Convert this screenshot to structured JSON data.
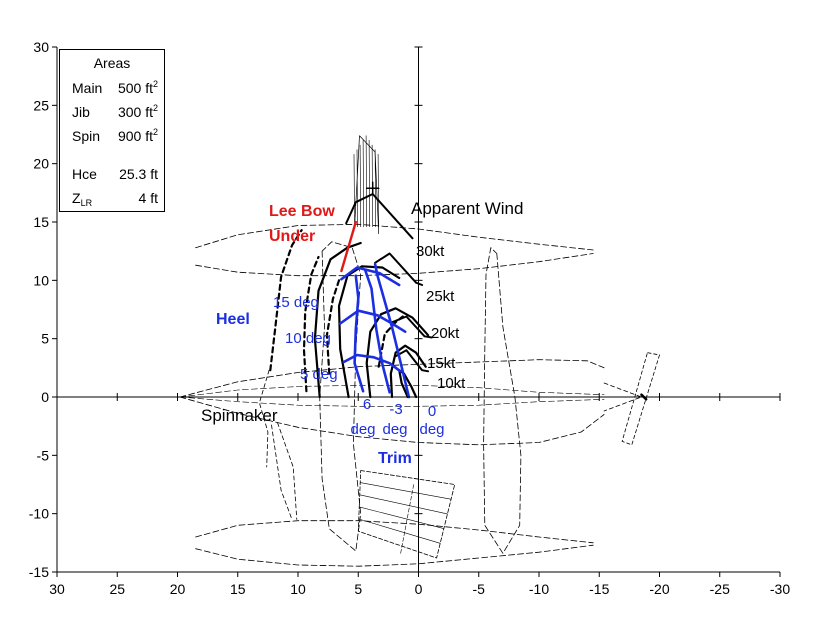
{
  "chart_data": {
    "type": "line",
    "title": "",
    "xlabel": "",
    "ylabel": "",
    "xlim": [
      30,
      -30
    ],
    "ylim": [
      -15,
      30
    ],
    "xticks": [
      "30",
      "25",
      "20",
      "15",
      "10",
      "5",
      "0",
      "-5",
      "-10",
      "-15",
      "-20",
      "-25",
      "-30"
    ],
    "yticks": [
      "30",
      "25",
      "20",
      "15",
      "10",
      "5",
      "0",
      "-5",
      "-10",
      "-15"
    ],
    "grid": false,
    "areas_box": {
      "title": "Areas",
      "rows": [
        {
          "label": "Main",
          "value": "500 ft",
          "sup": "2"
        },
        {
          "label": "Jib",
          "value": "300 ft",
          "sup": "2"
        },
        {
          "label": "Spin",
          "value": "900 ft",
          "sup": "2"
        },
        {
          "label": "Hce",
          "value": "25.3 ft",
          "sup": ""
        },
        {
          "label": "Z",
          "sub": "LR",
          "value": "4 ft",
          "sup": ""
        }
      ]
    },
    "annotations": {
      "apparent_wind": "Apparent Wind",
      "lee_bow_1": "Lee Bow",
      "lee_bow_2": "Under",
      "heel": "Heel",
      "spinnaker": "Spinnaker",
      "trim": "Trim",
      "wind_speeds": [
        "30kt",
        "25kt",
        "20kt",
        "15kt",
        "10kt"
      ],
      "heel_degs": [
        "15 deg",
        "10 deg",
        "5 deg"
      ],
      "trim_values": [
        "6",
        "-3",
        "0"
      ],
      "trim_unit": "deg"
    },
    "series": {
      "wind_speed_curves": [
        {
          "label": "10kt",
          "points": [
            [
              0.9,
              0
            ],
            [
              1.4,
              1.2
            ],
            [
              1.6,
              2.3
            ],
            [
              1.2,
              2.0
            ],
            [
              0.6,
              0.9
            ],
            [
              0.2,
              0
            ]
          ]
        },
        {
          "label": "15kt",
          "points": [
            [
              2.2,
              0
            ],
            [
              2.3,
              2.0
            ],
            [
              1.9,
              3.8
            ],
            [
              1.1,
              4.4
            ],
            [
              0.2,
              3.8
            ],
            [
              -0.6,
              2.6
            ]
          ]
        },
        {
          "label": "20kt",
          "points": [
            [
              4.0,
              0
            ],
            [
              4.3,
              2.9
            ],
            [
              4.0,
              5.6
            ],
            [
              3.1,
              7.1
            ],
            [
              1.9,
              7.6
            ],
            [
              0.5,
              6.8
            ],
            [
              -0.8,
              5.3
            ]
          ]
        },
        {
          "label": "25kt",
          "points": [
            [
              5.8,
              0
            ],
            [
              6.5,
              4.1
            ],
            [
              6.6,
              7.8
            ],
            [
              5.9,
              10.4
            ],
            [
              4.7,
              11.2
            ],
            [
              3.0,
              11.1
            ],
            [
              1.6,
              10.2
            ]
          ]
        },
        {
          "label": "30kt",
          "points": [
            [
              8.2,
              0
            ],
            [
              8.6,
              5.0
            ],
            [
              8.3,
              9.1
            ],
            [
              7.3,
              11.8
            ],
            [
              5.9,
              12.8
            ],
            [
              4.8,
              13.2
            ]
          ]
        }
      ],
      "wind_arrows": [
        {
          "label": "30kt",
          "points": [
            [
              6.0,
              14.9
            ],
            [
              5.2,
              16.7
            ],
            [
              3.8,
              17.4
            ],
            [
              0.5,
              13.6
            ]
          ]
        },
        {
          "label": "25kt",
          "points": [
            [
              3.6,
              11.5
            ],
            [
              2.4,
              12.3
            ],
            [
              0.2,
              9.8
            ],
            [
              -0.3,
              9.6
            ]
          ]
        },
        {
          "label": "20kt",
          "points": [
            [
              2.2,
              6.4
            ],
            [
              1.0,
              6.9
            ],
            [
              -0.5,
              5.2
            ],
            [
              -1.1,
              5.1
            ]
          ]
        },
        {
          "label": "15kt",
          "points": [
            [
              1.9,
              3.5
            ],
            [
              1.0,
              4.0
            ],
            [
              -0.3,
              2.3
            ],
            [
              -0.8,
              2.2
            ]
          ]
        }
      ],
      "heel_lines": [
        {
          "label": "15 deg",
          "points": [
            [
              6.4,
              10.1
            ],
            [
              5.1,
              11.1
            ],
            [
              3.2,
              10.6
            ],
            [
              1.6,
              9.6
            ]
          ]
        },
        {
          "label": "10 deg",
          "points": [
            [
              6.5,
              6.3
            ],
            [
              5.0,
              7.4
            ],
            [
              3.4,
              7.0
            ],
            [
              2.2,
              6.3
            ],
            [
              1.1,
              5.6
            ]
          ]
        },
        {
          "label": "5 deg",
          "points": [
            [
              6.2,
              3.0
            ],
            [
              5.1,
              3.6
            ],
            [
              3.7,
              3.4
            ],
            [
              2.4,
              2.9
            ],
            [
              1.5,
              2.2
            ]
          ]
        }
      ],
      "trim_lines": [
        {
          "label": "6",
          "points": [
            [
              4.6,
              0.5
            ],
            [
              5.3,
              2.9
            ],
            [
              5.2,
              5.8
            ],
            [
              5.0,
              8.5
            ],
            [
              5.2,
              10.4
            ]
          ]
        },
        {
          "label": "-3",
          "points": [
            [
              2.4,
              0.4
            ],
            [
              3.0,
              2.8
            ],
            [
              3.5,
              5.8
            ],
            [
              3.9,
              9.3
            ],
            [
              4.4,
              10.8
            ]
          ]
        },
        {
          "label": "0",
          "points": [
            [
              0.8,
              0
            ],
            [
              1.4,
              2.6
            ],
            [
              2.2,
              6.0
            ],
            [
              3.4,
              10.4
            ],
            [
              3.6,
              11.4
            ]
          ]
        }
      ],
      "lee_bow_line": [
        [
          6.4,
          10.8
        ],
        [
          5.2,
          15.0
        ]
      ],
      "spinnaker_dashed": [
        {
          "points": [
            [
              12.3,
              2.3
            ],
            [
              11.9,
              5.8
            ],
            [
              11.4,
              10.3
            ],
            [
              10.5,
              13.0
            ],
            [
              9.7,
              14.3
            ]
          ]
        },
        {
          "points": [
            [
              9.3,
              0.5
            ],
            [
              9.5,
              4.0
            ],
            [
              9.4,
              7.3
            ],
            [
              8.9,
              10.5
            ],
            [
              8.3,
              12.0
            ]
          ]
        },
        {
          "points": [
            [
              7.4,
              2.0
            ],
            [
              7.6,
              5.3
            ],
            [
              7.1,
              8.4
            ],
            [
              6.6,
              10.0
            ]
          ]
        },
        {
          "points": [
            [
              3.3,
              2.6
            ],
            [
              2.8,
              5.4
            ],
            [
              1.9,
              6.4
            ],
            [
              1.3,
              6.9
            ]
          ]
        }
      ]
    }
  }
}
